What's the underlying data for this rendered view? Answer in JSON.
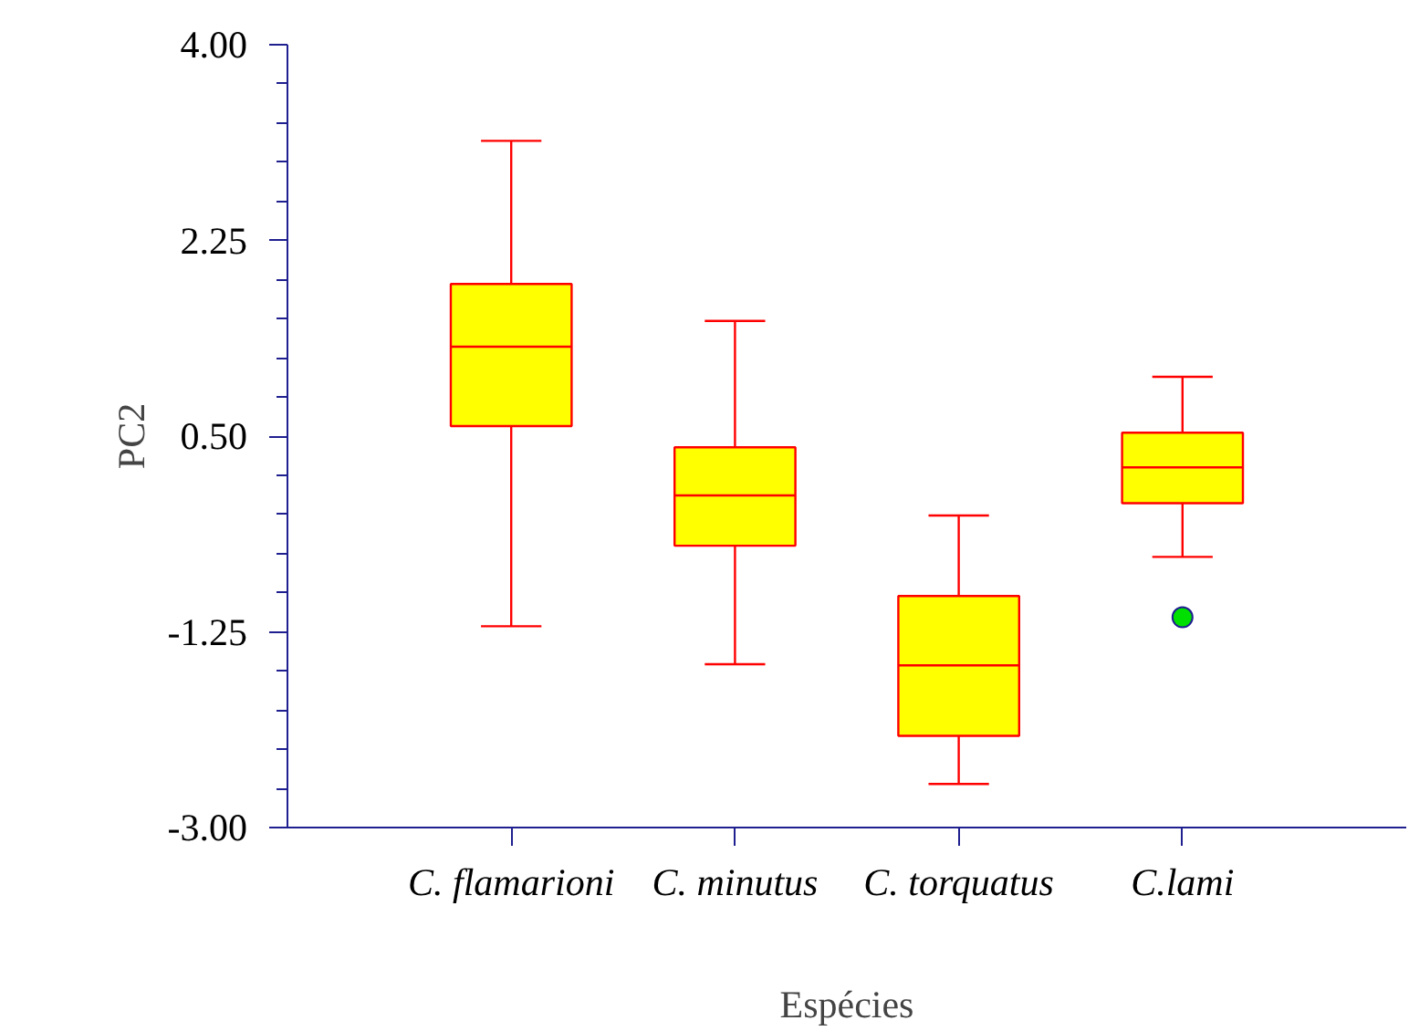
{
  "chart_data": {
    "type": "box",
    "xlabel": "Espécies",
    "ylabel": "PC2",
    "categories": [
      "C. flamarioni",
      "C. minutus",
      "C. torquatus",
      "C.lami"
    ],
    "boxes": [
      {
        "low": -1.2,
        "q1": 0.59,
        "median": 1.3,
        "q3": 1.86,
        "high": 3.14
      },
      {
        "low": -1.54,
        "q1": -0.48,
        "median": -0.03,
        "q3": 0.4,
        "high": 1.53
      },
      {
        "low": -2.61,
        "q1": -2.18,
        "median": -1.55,
        "q3": -0.93,
        "high": -0.21
      },
      {
        "low": -0.58,
        "q1": -0.1,
        "median": 0.22,
        "q3": 0.53,
        "high": 1.03,
        "outliers": [
          -1.12
        ]
      }
    ],
    "color": "#ffff00",
    "ylim": [
      -3.0,
      4.0
    ],
    "yticks": [
      {
        "value": -3.0,
        "label": "-3.00"
      },
      {
        "value": -1.25,
        "label": "-1.25"
      },
      {
        "value": 0.5,
        "label": "0.50"
      },
      {
        "value": 2.25,
        "label": "2.25"
      },
      {
        "value": 4.0,
        "label": "4.00"
      }
    ],
    "grid": false
  }
}
